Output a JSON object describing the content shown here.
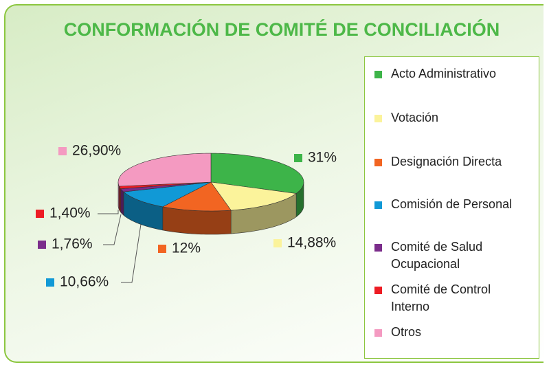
{
  "chart_data": {
    "type": "pie",
    "title": "CONFORMACIÓN DE COMITÉ DE CONCILIACIÓN",
    "categories": [
      "Acto Administrativo",
      "Votación",
      "Designación Directa",
      "Comisión de Personal",
      "Comité de Salud Ocupacional",
      "Comité de Control Interno",
      "Otros"
    ],
    "values": [
      31,
      14.88,
      12,
      10.66,
      1.76,
      1.4,
      26.9
    ],
    "value_labels": [
      "31%",
      "14,88%",
      "12%",
      "10,66%",
      "1,76%",
      "1,40%",
      "26,90%"
    ],
    "colors": [
      "#3db449",
      "#fbf39b",
      "#f26522",
      "#1199d6",
      "#7b2d8b",
      "#ed1c24",
      "#f49ac1"
    ],
    "legend": "right"
  }
}
